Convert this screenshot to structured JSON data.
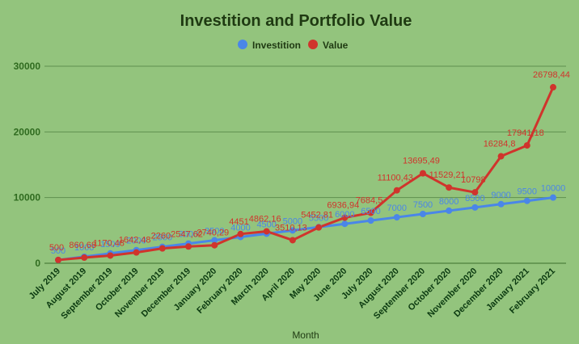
{
  "chart_data": {
    "type": "line",
    "title": "Investition and Portfolio Value",
    "xlabel": "Month",
    "ylabel": "",
    "ylim": [
      0,
      30000
    ],
    "yticks": [
      "0",
      "10000",
      "20000",
      "30000"
    ],
    "grid": true,
    "legend_position": "top",
    "categories": [
      "July 2019",
      "August 2019",
      "September 2019",
      "October 2019",
      "November 2019",
      "December 2019",
      "January 2020",
      "February 2020",
      "March 2020",
      "April 2020",
      "May 2020",
      "June 2020",
      "July 2020",
      "August 2020",
      "September 2020",
      "October 2020",
      "November 2020",
      "December 2020",
      "January 2021",
      "February 2021"
    ],
    "series": [
      {
        "name": "Investition",
        "color": "#4a86e8",
        "values": [
          500,
          1000,
          1500,
          2000,
          2500,
          3000,
          3500,
          4000,
          4500,
          5000,
          5500,
          6000,
          6500,
          7000,
          7500,
          8000,
          8500,
          9000,
          9500,
          10000
        ],
        "labels": [
          "500",
          "1000",
          "1500",
          "2000",
          "2500",
          "3000",
          "3500",
          "4000",
          "4500",
          "5000",
          "5500",
          "6000",
          "6500",
          "7000",
          "7500",
          "8000",
          "8500",
          "9000",
          "9500",
          "10000"
        ]
      },
      {
        "name": "Value",
        "color": "#d0342c",
        "values": [
          500,
          860.68,
          1170.48,
          1642.48,
          2260,
          2547.62,
          2740.29,
          4451,
          4862.16,
          3510.13,
          5452.81,
          6936.94,
          7684.5,
          11100.43,
          13695.49,
          11529.21,
          10798,
          16284.8,
          17941.18,
          26798.44
        ],
        "labels": [
          "500",
          "860,68",
          "1170,48",
          "1642,48",
          "2260",
          "2547,62",
          "2740,29",
          "4451",
          "4862,16",
          "3510,13",
          "5452,81",
          "6936,94",
          "7684,5",
          "11100,43",
          "13695,49",
          "11529,21",
          "10798",
          "16284,8",
          "17941,18",
          "26798,44"
        ]
      }
    ]
  }
}
